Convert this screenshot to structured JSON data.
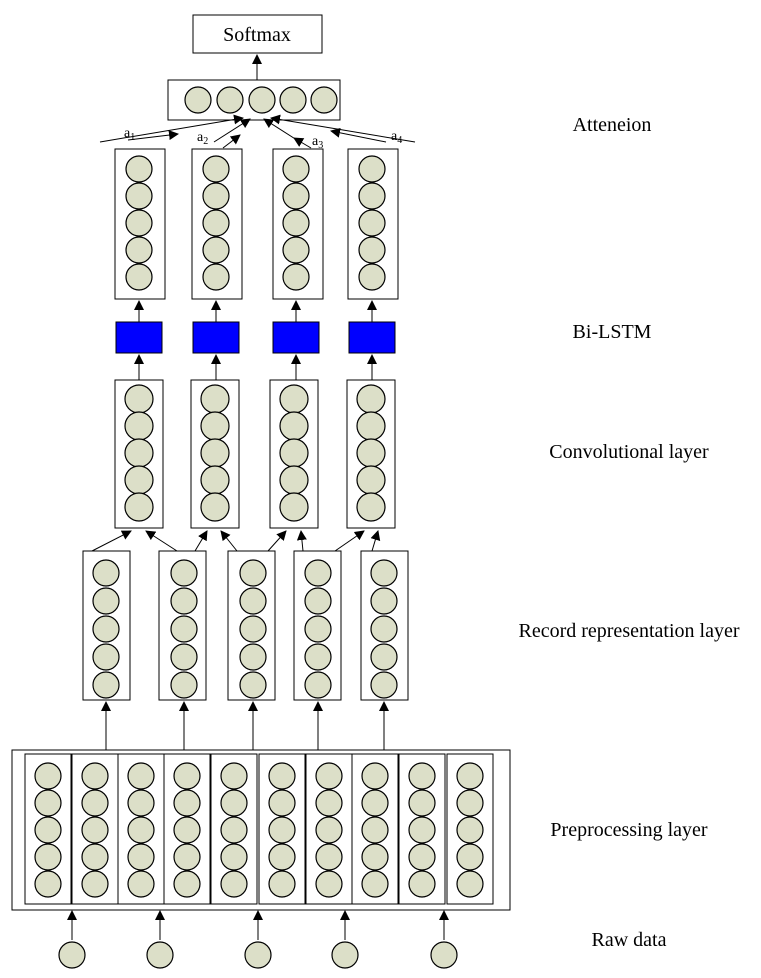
{
  "colors": {
    "node_fill": "#dcdfc8",
    "lstm_fill": "#0000ff",
    "stroke": "#000000"
  },
  "softmax": "Softmax",
  "attention_weights": [
    {
      "base": "a",
      "sub": "1"
    },
    {
      "base": "a",
      "sub": "2"
    },
    {
      "base": "a",
      "sub": "3"
    },
    {
      "base": "a",
      "sub": "4"
    }
  ],
  "layer_labels": {
    "attention": "Atteneion",
    "bilstm": "Bi-LSTM",
    "conv": "Convolutional layer",
    "record": "Record representation layer",
    "preproc": "Preprocessing layer",
    "raw": "Raw data"
  }
}
